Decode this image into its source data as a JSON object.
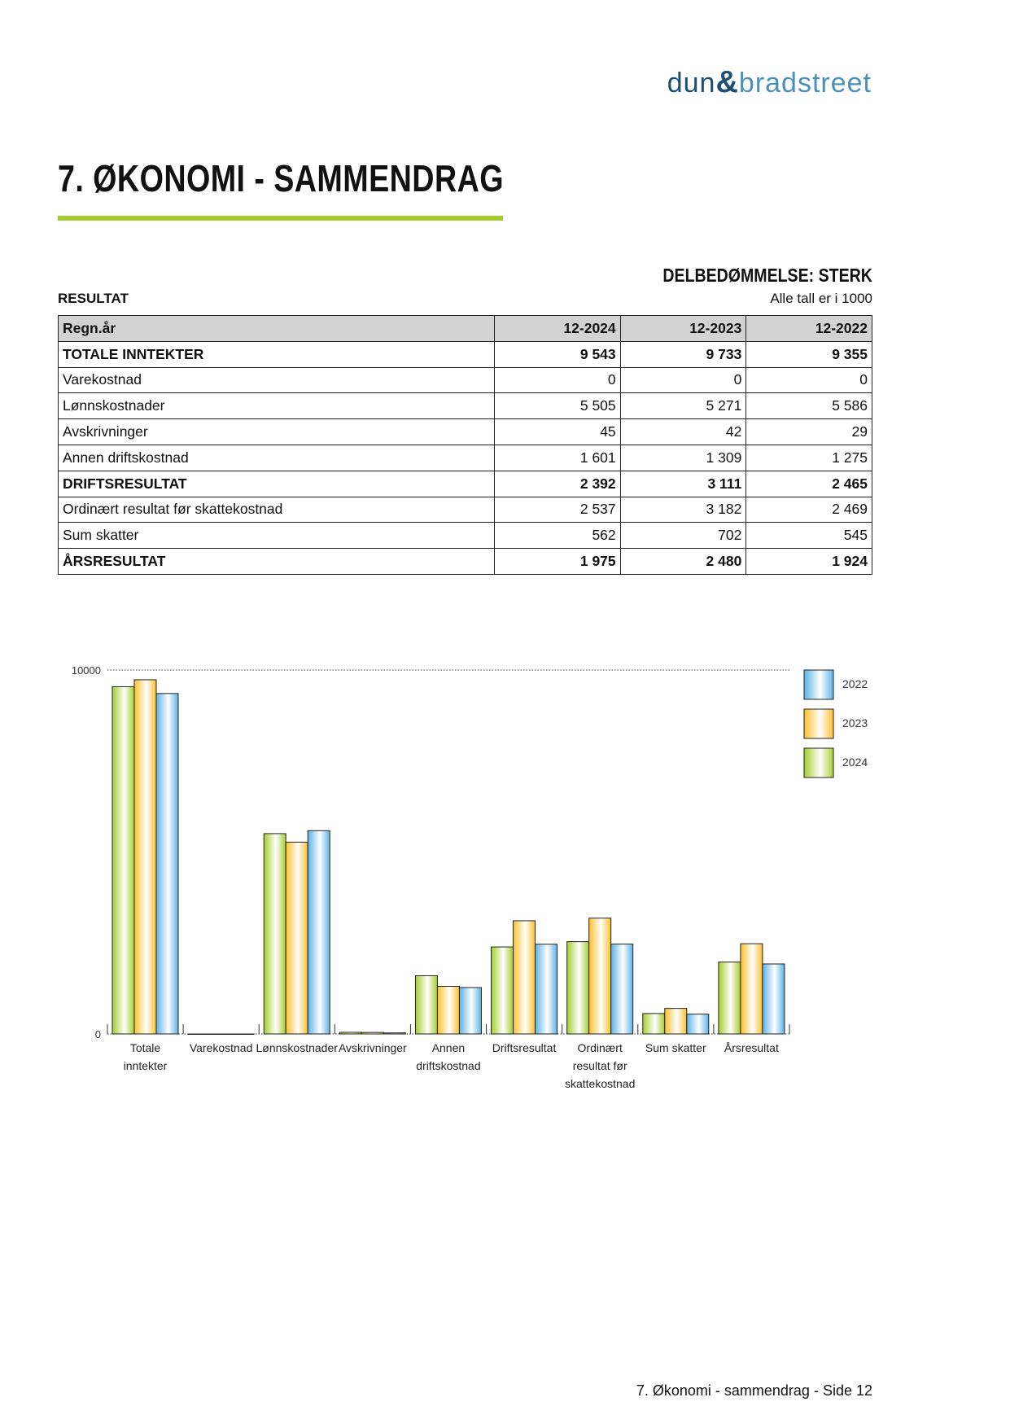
{
  "logo": {
    "left": "dun",
    "amp": "&",
    "right": "bradstreet"
  },
  "page_title": "7. ØKONOMI - SAMMENDRAG",
  "rating": "DELBEDØMMELSE: STERK",
  "section": "RESULTAT",
  "units_note": "Alle tall er i 1000",
  "table": {
    "headers": [
      "Regn.år",
      "12-2024",
      "12-2023",
      "12-2022"
    ],
    "rows": [
      {
        "label": "TOTALE INNTEKTER",
        "bold": true,
        "values": [
          "9 543",
          "9 733",
          "9 355"
        ]
      },
      {
        "label": "Varekostnad",
        "bold": false,
        "values": [
          "0",
          "0",
          "0"
        ]
      },
      {
        "label": "Lønnskostnader",
        "bold": false,
        "values": [
          "5 505",
          "5 271",
          "5 586"
        ]
      },
      {
        "label": "Avskrivninger",
        "bold": false,
        "values": [
          "45",
          "42",
          "29"
        ]
      },
      {
        "label": "Annen driftskostnad",
        "bold": false,
        "values": [
          "1 601",
          "1 309",
          "1 275"
        ]
      },
      {
        "label": "DRIFTSRESULTAT",
        "bold": true,
        "values": [
          "2 392",
          "3 111",
          "2 465"
        ]
      },
      {
        "label": "Ordinært resultat før skattekostnad",
        "bold": false,
        "values": [
          "2 537",
          "3 182",
          "2 469"
        ]
      },
      {
        "label": "Sum skatter",
        "bold": false,
        "values": [
          "562",
          "702",
          "545"
        ]
      },
      {
        "label": "ÅRSRESULTAT",
        "bold": true,
        "values": [
          "1 975",
          "2 480",
          "1 924"
        ]
      }
    ]
  },
  "chart_data": {
    "type": "bar",
    "categories": [
      [
        "Totale",
        "inntekter"
      ],
      [
        "Varekostnad"
      ],
      [
        "Lønnskostnader"
      ],
      [
        "Avskrivninger"
      ],
      [
        "Annen",
        "driftskostnad"
      ],
      [
        "Driftsresultat"
      ],
      [
        "Ordinært",
        "resultat før",
        "skattekostnad"
      ],
      [
        "Sum skatter"
      ],
      [
        "Årsresultat"
      ]
    ],
    "series": [
      {
        "name": "2024",
        "color": "#a5cd2d",
        "values": [
          9543,
          0,
          5505,
          45,
          1601,
          2392,
          2537,
          562,
          1975
        ]
      },
      {
        "name": "2023",
        "color": "#fbbf2a",
        "values": [
          9733,
          0,
          5271,
          42,
          1309,
          3111,
          3182,
          702,
          2480
        ]
      },
      {
        "name": "2022",
        "color": "#5cb3e6",
        "values": [
          9355,
          0,
          5586,
          29,
          1275,
          2465,
          2469,
          545,
          1924
        ]
      }
    ],
    "yticks": [
      "0",
      "10000"
    ],
    "ylim": [
      0,
      10000
    ],
    "legend_order": [
      "2022",
      "2023",
      "2024"
    ],
    "legend_placement": "right"
  },
  "footer": "7. Økonomi - sammendrag - Side 12"
}
